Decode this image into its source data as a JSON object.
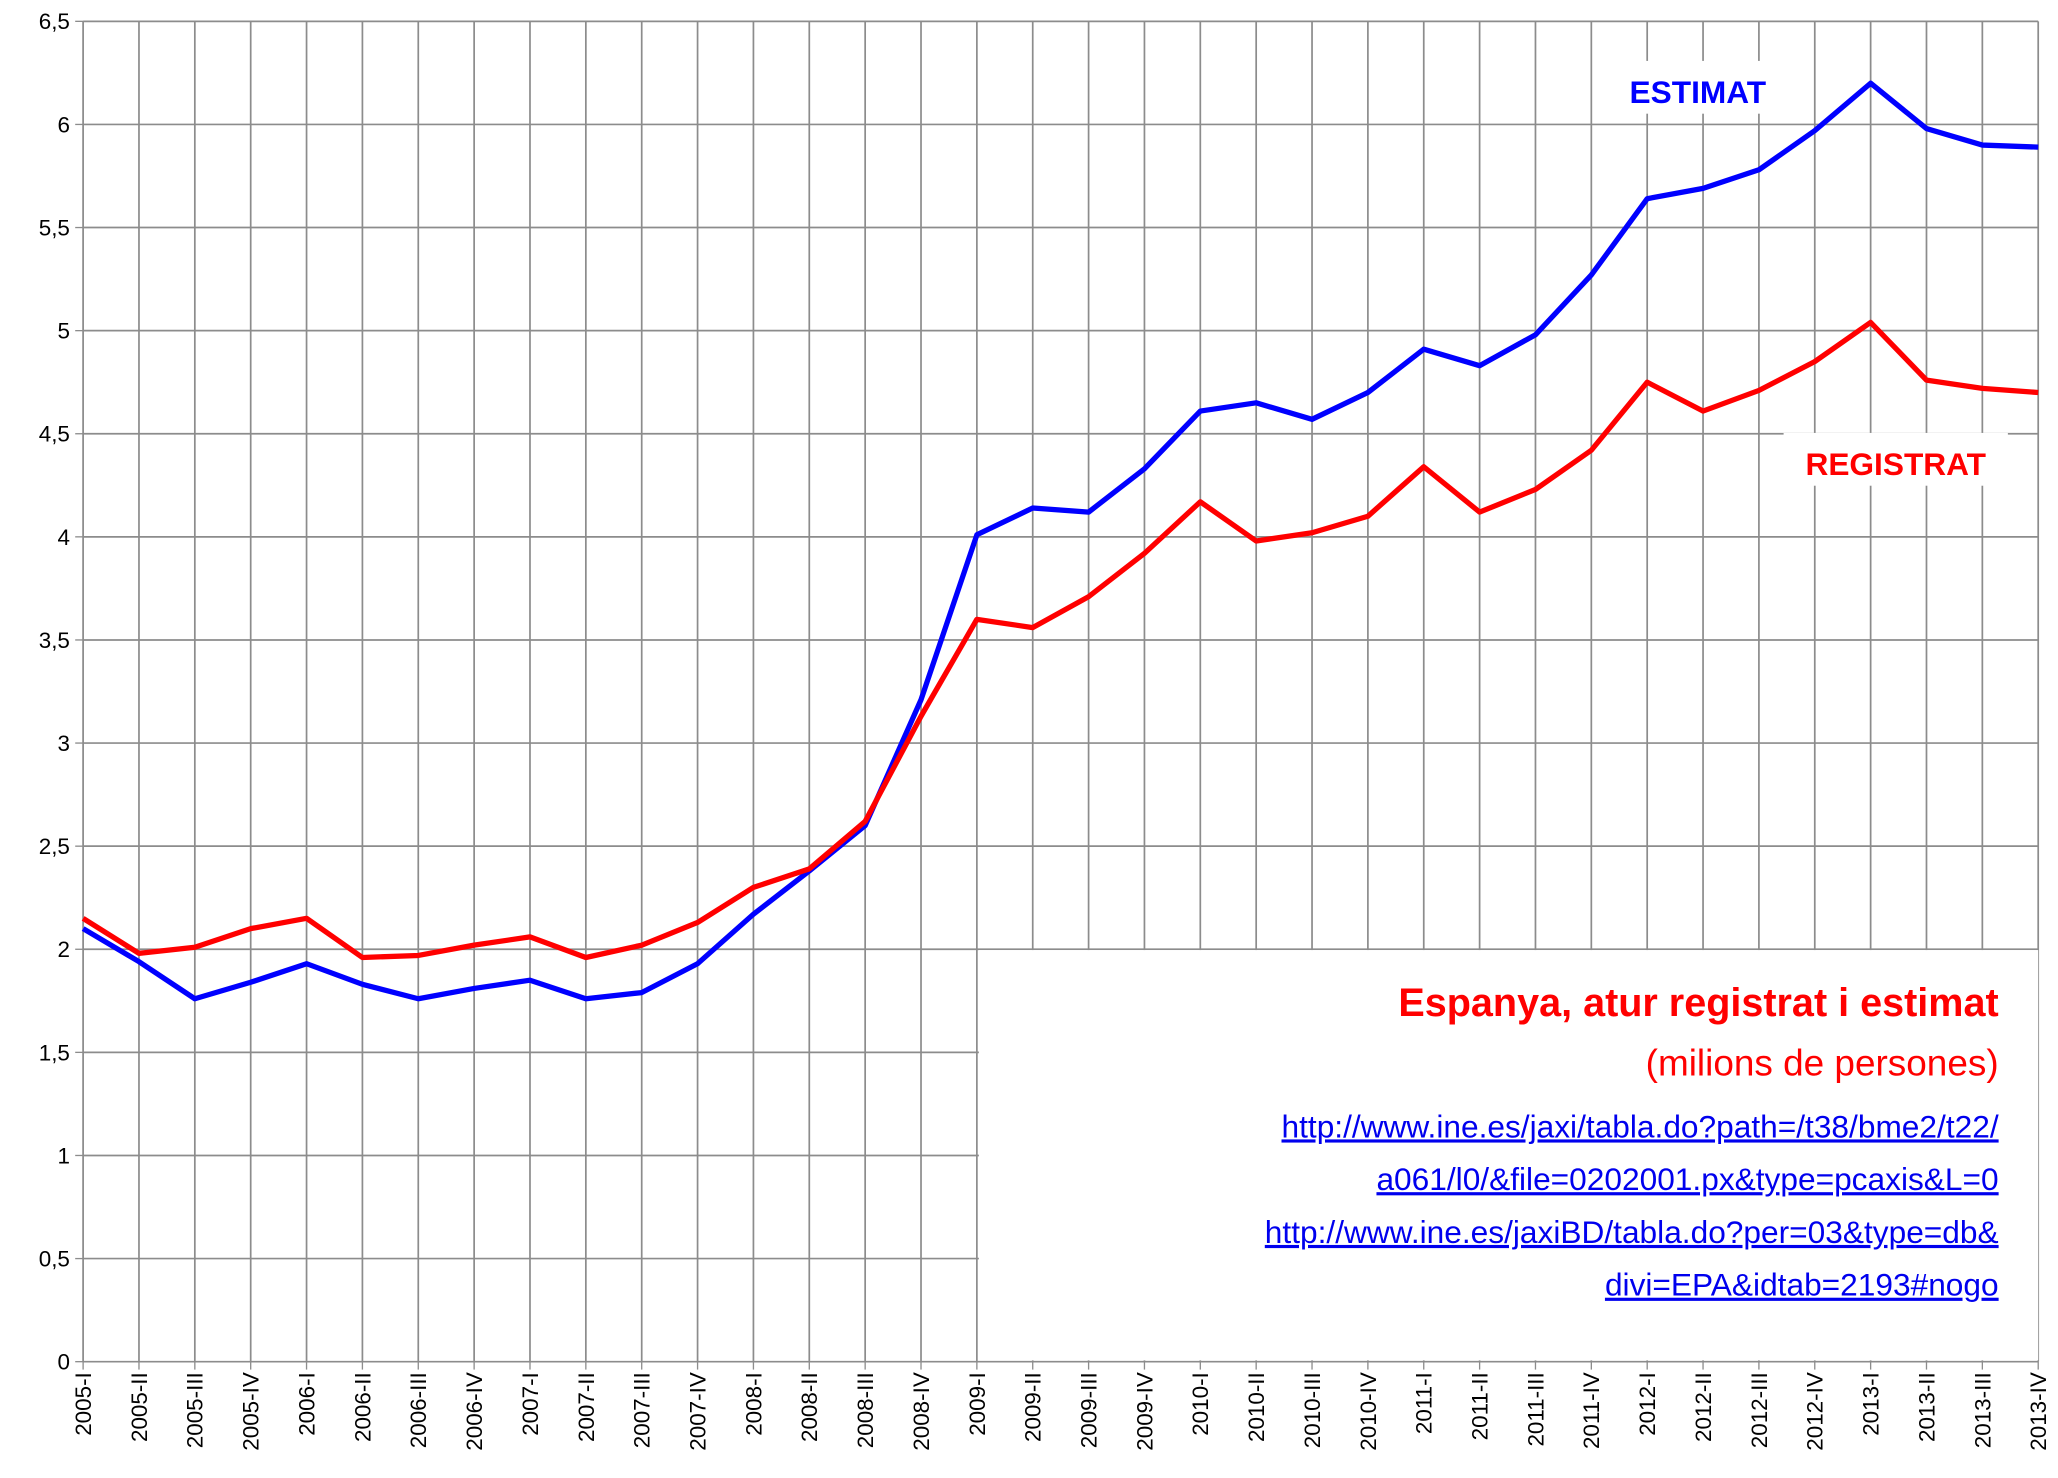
{
  "chart_data": {
    "type": "line",
    "categories": [
      "2005-I",
      "2005-II",
      "2005-III",
      "2005-IV",
      "2006-I",
      "2006-II",
      "2006-III",
      "2006-IV",
      "2007-I",
      "2007-II",
      "2007-III",
      "2007-IV",
      "2008-I",
      "2008-II",
      "2008-III",
      "2008-IV",
      "2009-I",
      "2009-II",
      "2009-III",
      "2009-IV",
      "2010-I",
      "2010-II",
      "2010-III",
      "2010-IV",
      "2011-I",
      "2011-II",
      "2011-III",
      "2011-IV",
      "2012-I",
      "2012-II",
      "2012-III",
      "2012-IV",
      "2013-I",
      "2013-II",
      "2013-III",
      "2013-IV"
    ],
    "series": [
      {
        "name": "ESTIMAT",
        "color": "#0000ff",
        "values": [
          2.1,
          1.94,
          1.76,
          1.84,
          1.93,
          1.83,
          1.76,
          1.81,
          1.85,
          1.76,
          1.79,
          1.93,
          2.17,
          2.38,
          2.6,
          3.21,
          4.01,
          4.14,
          4.12,
          4.33,
          4.61,
          4.65,
          4.57,
          4.7,
          4.91,
          4.83,
          4.98,
          5.27,
          5.64,
          5.69,
          5.78,
          5.97,
          6.2,
          5.98,
          5.9,
          5.89
        ]
      },
      {
        "name": "REGISTRAT",
        "color": "#ff0000",
        "values": [
          2.15,
          1.98,
          2.01,
          2.1,
          2.15,
          1.96,
          1.97,
          2.02,
          2.06,
          1.96,
          2.02,
          2.13,
          2.3,
          2.39,
          2.62,
          3.13,
          3.6,
          3.56,
          3.71,
          3.92,
          4.17,
          3.98,
          4.02,
          4.1,
          4.34,
          4.12,
          4.23,
          4.42,
          4.75,
          4.61,
          4.71,
          4.85,
          5.04,
          4.76,
          4.72,
          4.7
        ]
      }
    ],
    "ylim": [
      0,
      6.5
    ],
    "yticks": [
      0,
      {
        "value": 0.5,
        "label": "0,5"
      },
      1,
      {
        "value": 1.5,
        "label": "1,5"
      },
      2,
      {
        "value": 2.5,
        "label": "2,5"
      },
      3,
      {
        "value": 3.5,
        "label": "3,5"
      },
      4,
      {
        "value": 4.5,
        "label": "4,5"
      },
      5,
      {
        "value": 5.5,
        "label": "5,5"
      },
      6,
      {
        "value": 6.5,
        "label": "6,5"
      }
    ],
    "grid": true,
    "title": "Espanya, atur registrat i estimat",
    "subtitle": "(milions de persones)",
    "source_lines": [
      "http://www.ine.es/jaxi/tabla.do?path=/t38/bme2/t22/",
      "a061/l0/&file=0202001.px&type=pcaxis&L=0",
      "http://www.ine.es/jaxiBD/tabla.do?per=03&type=db&",
      "divi=EPA&idtab=2193#nogo"
    ]
  }
}
